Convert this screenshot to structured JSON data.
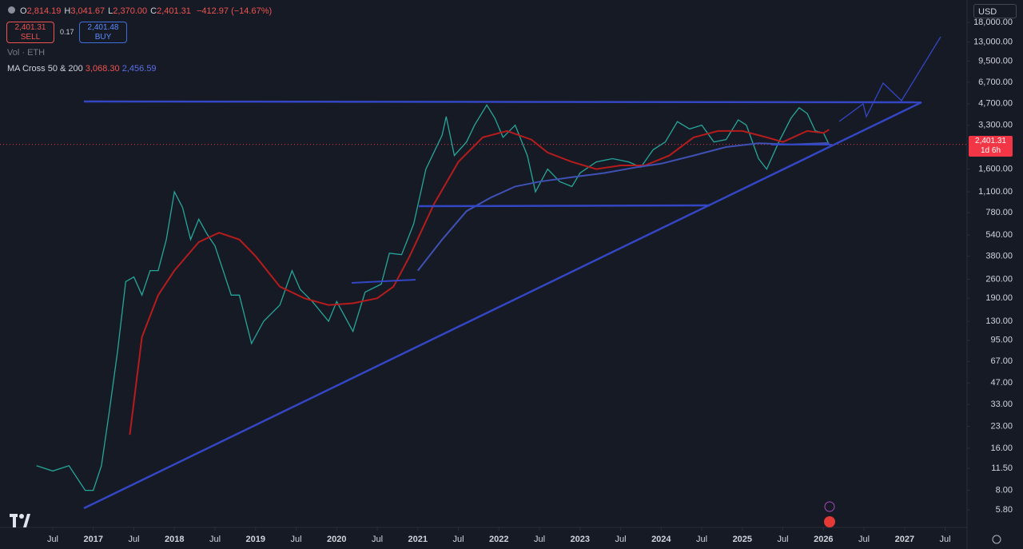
{
  "header": {
    "ohlc": [
      {
        "label": "O",
        "value": "2,814.19"
      },
      {
        "label": "H",
        "value": "3,041.67"
      },
      {
        "label": "L",
        "value": "2,370.00"
      },
      {
        "label": "C",
        "value": "2,401.31"
      }
    ],
    "change": "−412.97 (−14.67%)",
    "sell_price": "2,401.31",
    "sell_label": "SELL",
    "spread": "0.17",
    "buy_price": "2,401.48",
    "buy_label": "BUY",
    "volume_label": "Vol · ETH",
    "ma_label": "MA Cross 50 & 200",
    "ma_fast": "3,068.30",
    "ma_slow": "2,456.59",
    "currency": "USD"
  },
  "chart_data": {
    "type": "line",
    "log_scale": true,
    "xlim": [
      2015.85,
      2027.77
    ],
    "ylim": [
      4.34,
      26000
    ],
    "xticks": [
      {
        "value": 2016.5,
        "label": "Jul"
      },
      {
        "value": 2017,
        "label": "2017"
      },
      {
        "value": 2017.5,
        "label": "Jul"
      },
      {
        "value": 2018,
        "label": "2018"
      },
      {
        "value": 2018.5,
        "label": "Jul"
      },
      {
        "value": 2019,
        "label": "2019"
      },
      {
        "value": 2019.5,
        "label": "Jul"
      },
      {
        "value": 2020,
        "label": "2020"
      },
      {
        "value": 2020.5,
        "label": "Jul"
      },
      {
        "value": 2021,
        "label": "2021"
      },
      {
        "value": 2021.5,
        "label": "Jul"
      },
      {
        "value": 2022,
        "label": "2022"
      },
      {
        "value": 2022.5,
        "label": "Jul"
      },
      {
        "value": 2023,
        "label": "2023"
      },
      {
        "value": 2023.5,
        "label": "Jul"
      },
      {
        "value": 2024,
        "label": "2024"
      },
      {
        "value": 2024.5,
        "label": "Jul"
      },
      {
        "value": 2025,
        "label": "2025"
      },
      {
        "value": 2025.5,
        "label": "Jul"
      },
      {
        "value": 2026,
        "label": "2026"
      },
      {
        "value": 2026.5,
        "label": "Jul"
      },
      {
        "value": 2027,
        "label": "2027"
      },
      {
        "value": 2027.5,
        "label": "Jul"
      }
    ],
    "yticks": [
      {
        "value": 18000,
        "label": "18,000.00"
      },
      {
        "value": 13000,
        "label": "13,000.00"
      },
      {
        "value": 9500,
        "label": "9,500.00"
      },
      {
        "value": 6700,
        "label": "6,700.00"
      },
      {
        "value": 4700,
        "label": "4,700.00"
      },
      {
        "value": 3300,
        "label": "3,300.00"
      },
      {
        "value": 1600,
        "label": "1,600.00"
      },
      {
        "value": 1100,
        "label": "1,100.00"
      },
      {
        "value": 780,
        "label": "780.00"
      },
      {
        "value": 540,
        "label": "540.00"
      },
      {
        "value": 380,
        "label": "380.00"
      },
      {
        "value": 260,
        "label": "260.00"
      },
      {
        "value": 190,
        "label": "190.00"
      },
      {
        "value": 130,
        "label": "130.00"
      },
      {
        "value": 95,
        "label": "95.00"
      },
      {
        "value": 67,
        "label": "67.00"
      },
      {
        "value": 47,
        "label": "47.00"
      },
      {
        "value": 33,
        "label": "33.00"
      },
      {
        "value": 23,
        "label": "23.00"
      },
      {
        "value": 16,
        "label": "16.00"
      },
      {
        "value": 11.5,
        "label": "11.50"
      },
      {
        "value": 8,
        "label": "8.00"
      },
      {
        "value": 5.8,
        "label": "5.80"
      }
    ],
    "last_price": {
      "value": 2401.31,
      "label": "2,401.31",
      "countdown": "1d 6h"
    },
    "series": [
      {
        "color": "#26a69a",
        "x": [
          2016.3,
          2016.5,
          2016.7,
          2016.9,
          2017.0,
          2017.1,
          2017.2,
          2017.3,
          2017.4,
          2017.5,
          2017.6,
          2017.7,
          2017.8,
          2017.9,
          2018.0,
          2018.1,
          2018.2,
          2018.3,
          2018.4,
          2018.5,
          2018.6,
          2018.7,
          2018.8,
          2018.95,
          2019.1,
          2019.3,
          2019.45,
          2019.55,
          2019.7,
          2019.9,
          2020.0,
          2020.2,
          2020.35,
          2020.55,
          2020.65,
          2020.8,
          2020.95,
          2021.1,
          2021.3,
          2021.35,
          2021.45,
          2021.6,
          2021.7,
          2021.85,
          2021.95,
          2022.05,
          2022.2,
          2022.35,
          2022.45,
          2022.6,
          2022.75,
          2022.9,
          2023.0,
          2023.2,
          2023.4,
          2023.6,
          2023.75,
          2023.9,
          2024.05,
          2024.2,
          2024.35,
          2024.5,
          2024.65,
          2024.8,
          2024.95,
          2025.05,
          2025.2,
          2025.3,
          2025.45,
          2025.6,
          2025.7,
          2025.8,
          2025.9,
          2026.0,
          2026.07
        ],
        "values": [
          12,
          11,
          12,
          8,
          8,
          12,
          30,
          80,
          250,
          270,
          200,
          300,
          300,
          500,
          1100,
          850,
          500,
          700,
          550,
          450,
          300,
          200,
          200,
          90,
          130,
          170,
          300,
          220,
          180,
          130,
          180,
          110,
          210,
          240,
          400,
          390,
          650,
          1600,
          2800,
          3800,
          2000,
          2500,
          3300,
          4600,
          3700,
          2700,
          3300,
          2000,
          1100,
          1600,
          1300,
          1200,
          1500,
          1800,
          1900,
          1800,
          1650,
          2200,
          2500,
          3500,
          3100,
          3300,
          2500,
          2600,
          3600,
          3300,
          1900,
          1600,
          2500,
          3700,
          4400,
          4000,
          3000,
          2900,
          2401.31
        ]
      },
      {
        "color": "#b71c1c",
        "x": [
          2017.45,
          2017.6,
          2017.8,
          2018.0,
          2018.3,
          2018.55,
          2018.8,
          2019.0,
          2019.3,
          2019.6,
          2019.9,
          2020.2,
          2020.5,
          2020.7,
          2020.9,
          2021.2,
          2021.5,
          2021.8,
          2022.1,
          2022.4,
          2022.6,
          2022.9,
          2023.2,
          2023.5,
          2023.8,
          2024.1,
          2024.4,
          2024.7,
          2025.0,
          2025.3,
          2025.5,
          2025.8,
          2026.0,
          2026.07
        ],
        "values": [
          20,
          100,
          200,
          300,
          480,
          560,
          500,
          380,
          230,
          190,
          170,
          175,
          190,
          230,
          380,
          900,
          1800,
          2700,
          3000,
          2600,
          2100,
          1800,
          1600,
          1700,
          1700,
          2000,
          2700,
          3000,
          3000,
          2700,
          2500,
          3000,
          2900,
          3068.3
        ]
      },
      {
        "color": "#3f51b5",
        "x": [
          2021.0,
          2021.3,
          2021.6,
          2021.9,
          2022.2,
          2022.5,
          2022.9,
          2023.3,
          2023.7,
          2024.0,
          2024.4,
          2024.8,
          2025.2,
          2025.6,
          2026.07
        ],
        "values": [
          300,
          500,
          800,
          1000,
          1200,
          1300,
          1400,
          1500,
          1650,
          1750,
          2000,
          2300,
          2450,
          2400,
          2456.59
        ]
      }
    ]
  }
}
